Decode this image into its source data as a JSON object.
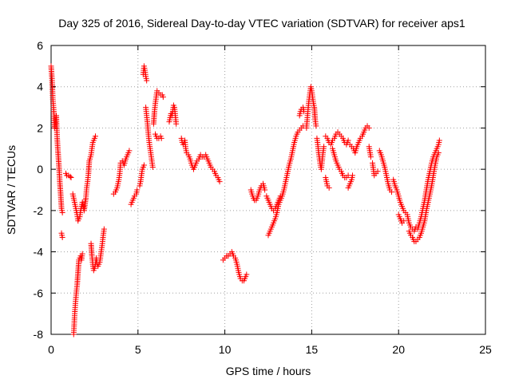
{
  "chart_data": {
    "type": "scatter",
    "title": "Day 325 of 2016, Sidereal Day-to-day VTEC variation (SDTVAR) for receiver aps1",
    "xlabel": "GPS time / hours",
    "ylabel": "SDTVAR / TECUs",
    "xlim": [
      0,
      25
    ],
    "ylim": [
      -8,
      6
    ],
    "xticks": [
      0,
      5,
      10,
      15,
      20,
      25
    ],
    "yticks": [
      -8,
      -6,
      -4,
      -2,
      0,
      2,
      4,
      6
    ],
    "xtick_labels": [
      "0",
      "5",
      "10",
      "15",
      "20",
      "25"
    ],
    "ytick_labels": [
      "-8",
      "-6",
      "-4",
      "-2",
      "0",
      "2",
      "4",
      "6"
    ],
    "grid": true,
    "marker": "+",
    "series_color": "#ff0000",
    "segments": [
      [
        [
          0.0,
          5.0
        ],
        [
          0.05,
          4.4
        ],
        [
          0.1,
          3.4
        ],
        [
          0.15,
          2.9
        ],
        [
          0.2,
          2.0
        ],
        [
          0.3,
          2.6
        ],
        [
          0.35,
          1.5
        ],
        [
          0.4,
          0.8
        ],
        [
          0.45,
          0.2
        ],
        [
          0.5,
          -0.6
        ],
        [
          0.55,
          -1.2
        ],
        [
          0.6,
          -1.9
        ],
        [
          0.65,
          -2.1
        ]
      ],
      [
        [
          0.6,
          -3.1
        ],
        [
          0.65,
          -3.3
        ]
      ],
      [
        [
          0.85,
          -0.2
        ],
        [
          0.9,
          -0.3
        ],
        [
          1.0,
          -0.3
        ],
        [
          1.1,
          -0.35
        ],
        [
          1.15,
          -0.4
        ]
      ],
      [
        [
          1.3,
          -8.0
        ],
        [
          1.33,
          -7.5
        ],
        [
          1.36,
          -7.0
        ],
        [
          1.4,
          -6.5
        ],
        [
          1.45,
          -6.0
        ],
        [
          1.5,
          -5.6
        ],
        [
          1.55,
          -5.0
        ],
        [
          1.6,
          -4.4
        ],
        [
          1.7,
          -4.2
        ],
        [
          1.75,
          -4.4
        ],
        [
          1.8,
          -4.1
        ]
      ],
      [
        [
          1.25,
          -1.2
        ],
        [
          1.3,
          -1.4
        ],
        [
          1.4,
          -1.8
        ],
        [
          1.5,
          -2.2
        ],
        [
          1.55,
          -2.5
        ],
        [
          1.65,
          -2.3
        ],
        [
          1.7,
          -2.0
        ],
        [
          1.8,
          -1.6
        ],
        [
          1.9,
          -2.0
        ],
        [
          2.0,
          -1.4
        ],
        [
          2.05,
          -0.9
        ],
        [
          2.1,
          -0.6
        ],
        [
          2.15,
          -0.2
        ],
        [
          2.2,
          0.4
        ],
        [
          2.3,
          0.7
        ],
        [
          2.35,
          1.0
        ],
        [
          2.4,
          1.3
        ],
        [
          2.5,
          1.5
        ],
        [
          2.55,
          1.6
        ]
      ],
      [
        [
          2.3,
          -3.6
        ],
        [
          2.35,
          -4.2
        ],
        [
          2.4,
          -4.6
        ],
        [
          2.45,
          -4.9
        ],
        [
          2.5,
          -4.8
        ],
        [
          2.55,
          -4.6
        ],
        [
          2.6,
          -4.3
        ],
        [
          2.65,
          -4.6
        ],
        [
          2.7,
          -4.7
        ],
        [
          2.8,
          -4.5
        ],
        [
          2.85,
          -4.2
        ],
        [
          2.9,
          -3.9
        ],
        [
          2.95,
          -3.6
        ],
        [
          3.0,
          -3.2
        ],
        [
          3.05,
          -2.9
        ]
      ],
      [
        [
          3.6,
          -1.2
        ],
        [
          3.7,
          -1.1
        ],
        [
          3.8,
          -0.9
        ],
        [
          3.9,
          -0.5
        ],
        [
          3.95,
          -0.2
        ],
        [
          4.0,
          0.3
        ],
        [
          4.1,
          0.4
        ],
        [
          4.2,
          0.2
        ],
        [
          4.3,
          0.5
        ],
        [
          4.4,
          0.7
        ],
        [
          4.5,
          0.9
        ]
      ],
      [
        [
          4.6,
          -1.7
        ],
        [
          4.7,
          -1.5
        ],
        [
          4.8,
          -1.3
        ],
        [
          4.9,
          -1.2
        ],
        [
          4.95,
          -1.0
        ]
      ],
      [
        [
          5.1,
          -0.8
        ],
        [
          5.15,
          -0.6
        ],
        [
          5.2,
          -0.3
        ],
        [
          5.25,
          0.0
        ],
        [
          5.35,
          0.2
        ]
      ],
      [
        [
          5.3,
          4.6
        ],
        [
          5.35,
          5.0
        ],
        [
          5.4,
          4.8
        ],
        [
          5.45,
          4.5
        ],
        [
          5.5,
          4.3
        ]
      ],
      [
        [
          5.45,
          3.0
        ],
        [
          5.5,
          2.6
        ],
        [
          5.55,
          2.2
        ],
        [
          5.6,
          1.7
        ],
        [
          5.65,
          1.3
        ],
        [
          5.7,
          1.0
        ],
        [
          5.75,
          0.7
        ],
        [
          5.8,
          0.4
        ],
        [
          5.85,
          0.1
        ]
      ],
      [
        [
          5.9,
          2.2
        ],
        [
          5.95,
          2.8
        ],
        [
          6.0,
          3.2
        ],
        [
          6.05,
          3.5
        ],
        [
          6.1,
          3.8
        ],
        [
          6.2,
          3.7
        ],
        [
          6.3,
          3.6
        ],
        [
          6.4,
          3.6
        ],
        [
          6.45,
          3.5
        ]
      ],
      [
        [
          6.0,
          1.7
        ],
        [
          6.1,
          1.5
        ],
        [
          6.2,
          1.5
        ],
        [
          6.3,
          1.6
        ],
        [
          6.35,
          1.5
        ]
      ],
      [
        [
          6.8,
          2.3
        ],
        [
          6.85,
          2.5
        ],
        [
          6.9,
          2.7
        ],
        [
          6.95,
          2.6
        ],
        [
          7.0,
          2.8
        ],
        [
          7.05,
          3.1
        ],
        [
          7.1,
          3.0
        ],
        [
          7.15,
          2.6
        ],
        [
          7.2,
          2.2
        ]
      ],
      [
        [
          7.5,
          1.5
        ],
        [
          7.55,
          1.3
        ],
        [
          7.6,
          1.2
        ],
        [
          7.7,
          1.4
        ],
        [
          7.75,
          1.0
        ],
        [
          7.8,
          0.8
        ]
      ],
      [
        [
          7.9,
          0.7
        ],
        [
          8.0,
          0.5
        ],
        [
          8.1,
          0.2
        ],
        [
          8.2,
          0.0
        ],
        [
          8.3,
          0.2
        ],
        [
          8.4,
          0.4
        ],
        [
          8.5,
          0.5
        ],
        [
          8.6,
          0.7
        ],
        [
          8.7,
          0.6
        ],
        [
          8.8,
          0.6
        ],
        [
          8.9,
          0.7
        ],
        [
          9.0,
          0.5
        ],
        [
          9.1,
          0.3
        ],
        [
          9.2,
          0.1
        ],
        [
          9.3,
          0.0
        ],
        [
          9.4,
          -0.1
        ],
        [
          9.5,
          -0.3
        ],
        [
          9.6,
          -0.4
        ],
        [
          9.7,
          -0.6
        ]
      ],
      [
        [
          9.9,
          -4.4
        ],
        [
          10.0,
          -4.3
        ],
        [
          10.1,
          -4.2
        ],
        [
          10.2,
          -4.2
        ],
        [
          10.3,
          -4.1
        ],
        [
          10.4,
          -4.0
        ],
        [
          10.5,
          -4.2
        ],
        [
          10.6,
          -4.3
        ],
        [
          10.7,
          -4.6
        ],
        [
          10.8,
          -5.0
        ],
        [
          10.9,
          -5.3
        ],
        [
          11.0,
          -5.4
        ],
        [
          11.1,
          -5.4
        ],
        [
          11.2,
          -5.2
        ],
        [
          11.25,
          -5.1
        ]
      ],
      [
        [
          11.5,
          -1.0
        ],
        [
          11.6,
          -1.3
        ],
        [
          11.7,
          -1.5
        ],
        [
          11.8,
          -1.5
        ],
        [
          11.9,
          -1.3
        ],
        [
          12.0,
          -1.0
        ],
        [
          12.1,
          -0.8
        ],
        [
          12.2,
          -0.7
        ],
        [
          12.3,
          -1.0
        ]
      ],
      [
        [
          12.4,
          -1.3
        ],
        [
          12.5,
          -1.5
        ],
        [
          12.6,
          -1.7
        ],
        [
          12.7,
          -1.9
        ],
        [
          12.8,
          -2.0
        ],
        [
          12.9,
          -1.9
        ],
        [
          13.0,
          -1.7
        ],
        [
          13.1,
          -1.5
        ],
        [
          13.2,
          -1.3
        ]
      ],
      [
        [
          12.5,
          -3.2
        ],
        [
          12.6,
          -3.0
        ],
        [
          12.7,
          -2.8
        ],
        [
          12.8,
          -2.6
        ],
        [
          12.9,
          -2.4
        ],
        [
          13.0,
          -2.1
        ],
        [
          13.1,
          -1.7
        ],
        [
          13.2,
          -1.5
        ],
        [
          13.3,
          -1.3
        ],
        [
          13.4,
          -1.0
        ],
        [
          13.5,
          -0.6
        ],
        [
          13.6,
          -0.2
        ],
        [
          13.7,
          0.2
        ],
        [
          13.8,
          0.5
        ],
        [
          13.9,
          0.9
        ],
        [
          14.0,
          1.3
        ],
        [
          14.1,
          1.6
        ],
        [
          14.2,
          1.8
        ],
        [
          14.3,
          1.9
        ],
        [
          14.4,
          2.0
        ],
        [
          14.5,
          2.1
        ]
      ],
      [
        [
          14.3,
          2.6
        ],
        [
          14.35,
          2.8
        ],
        [
          14.4,
          2.9
        ],
        [
          14.5,
          3.0
        ],
        [
          14.55,
          2.8
        ]
      ],
      [
        [
          14.7,
          2.0
        ],
        [
          14.75,
          2.5
        ],
        [
          14.8,
          3.0
        ],
        [
          14.85,
          3.4
        ],
        [
          14.9,
          3.7
        ],
        [
          14.95,
          4.0
        ],
        [
          15.0,
          3.8
        ],
        [
          15.05,
          3.5
        ],
        [
          15.1,
          3.2
        ],
        [
          15.15,
          3.0
        ],
        [
          15.2,
          2.4
        ],
        [
          15.25,
          2.1
        ]
      ],
      [
        [
          15.3,
          1.5
        ],
        [
          15.35,
          1.2
        ],
        [
          15.4,
          0.8
        ],
        [
          15.45,
          0.5
        ],
        [
          15.5,
          0.2
        ],
        [
          15.55,
          0.0
        ],
        [
          15.6,
          0.4
        ],
        [
          15.65,
          0.8
        ],
        [
          15.7,
          1.1
        ]
      ],
      [
        [
          15.8,
          1.6
        ],
        [
          15.9,
          1.5
        ],
        [
          16.0,
          1.3
        ],
        [
          16.1,
          1.2
        ],
        [
          16.2,
          1.4
        ],
        [
          16.3,
          1.5
        ],
        [
          16.4,
          1.7
        ],
        [
          16.5,
          1.8
        ],
        [
          16.6,
          1.7
        ],
        [
          16.7,
          1.6
        ],
        [
          16.8,
          1.5
        ],
        [
          16.9,
          1.3
        ],
        [
          17.0,
          1.2
        ],
        [
          17.1,
          1.4
        ]
      ],
      [
        [
          15.8,
          -0.4
        ],
        [
          15.85,
          -0.6
        ],
        [
          15.9,
          -0.8
        ],
        [
          16.0,
          -0.9
        ]
      ],
      [
        [
          16.2,
          1.0
        ],
        [
          16.3,
          0.7
        ],
        [
          16.4,
          0.4
        ],
        [
          16.5,
          0.2
        ],
        [
          16.6,
          0.0
        ],
        [
          16.7,
          -0.1
        ],
        [
          16.8,
          -0.3
        ],
        [
          16.9,
          -0.4
        ],
        [
          17.0,
          -0.4
        ],
        [
          17.1,
          -0.3
        ]
      ],
      [
        [
          17.2,
          1.2
        ],
        [
          17.3,
          1.1
        ],
        [
          17.4,
          1.0
        ],
        [
          17.5,
          0.8
        ],
        [
          17.6,
          1.1
        ],
        [
          17.7,
          1.3
        ],
        [
          17.8,
          1.5
        ],
        [
          17.9,
          1.6
        ],
        [
          18.0,
          1.8
        ],
        [
          18.1,
          2.0
        ],
        [
          18.2,
          2.1
        ],
        [
          18.3,
          2.0
        ]
      ],
      [
        [
          17.1,
          -0.9
        ],
        [
          17.2,
          -0.7
        ],
        [
          17.3,
          -0.5
        ],
        [
          17.35,
          -0.3
        ]
      ],
      [
        [
          18.3,
          1.1
        ],
        [
          18.4,
          0.6
        ]
      ],
      [
        [
          18.5,
          0.3
        ],
        [
          18.55,
          0.0
        ],
        [
          18.6,
          -0.3
        ],
        [
          18.7,
          -0.2
        ],
        [
          18.8,
          -0.1
        ]
      ],
      [
        [
          18.9,
          0.9
        ],
        [
          19.0,
          0.7
        ],
        [
          19.1,
          0.4
        ],
        [
          19.2,
          0.1
        ],
        [
          19.3,
          -0.3
        ],
        [
          19.4,
          -0.7
        ],
        [
          19.5,
          -1.0
        ],
        [
          19.6,
          -1.1
        ]
      ],
      [
        [
          19.7,
          -0.5
        ],
        [
          19.8,
          -0.8
        ],
        [
          19.9,
          -1.0
        ],
        [
          20.0,
          -1.3
        ],
        [
          20.1,
          -1.6
        ],
        [
          20.2,
          -1.8
        ],
        [
          20.3,
          -2.0
        ],
        [
          20.4,
          -2.1
        ],
        [
          20.5,
          -2.2
        ],
        [
          20.6,
          -2.6
        ],
        [
          20.7,
          -2.8
        ],
        [
          20.8,
          -2.9
        ],
        [
          20.9,
          -3.0
        ],
        [
          21.0,
          -2.8
        ]
      ],
      [
        [
          20.0,
          -2.2
        ],
        [
          20.1,
          -2.4
        ],
        [
          20.2,
          -2.6
        ],
        [
          20.3,
          -2.5
        ]
      ],
      [
        [
          20.6,
          -3.0
        ],
        [
          20.7,
          -3.2
        ],
        [
          20.8,
          -3.3
        ],
        [
          20.9,
          -3.5
        ],
        [
          21.0,
          -3.5
        ],
        [
          21.1,
          -3.4
        ],
        [
          21.2,
          -3.3
        ],
        [
          21.3,
          -3.1
        ],
        [
          21.4,
          -2.8
        ],
        [
          21.5,
          -2.5
        ],
        [
          21.6,
          -2.0
        ],
        [
          21.7,
          -1.6
        ],
        [
          21.8,
          -1.2
        ],
        [
          21.9,
          -0.8
        ],
        [
          22.0,
          -0.3
        ],
        [
          22.1,
          0.2
        ],
        [
          22.2,
          0.6
        ],
        [
          22.3,
          0.8
        ]
      ],
      [
        [
          21.1,
          -2.9
        ],
        [
          21.2,
          -2.6
        ],
        [
          21.3,
          -2.3
        ],
        [
          21.4,
          -1.9
        ],
        [
          21.5,
          -1.5
        ],
        [
          21.6,
          -1.0
        ],
        [
          21.7,
          -0.5
        ],
        [
          21.8,
          -0.1
        ],
        [
          21.9,
          0.3
        ],
        [
          22.0,
          0.6
        ],
        [
          22.1,
          0.8
        ],
        [
          22.2,
          1.0
        ],
        [
          22.3,
          1.2
        ],
        [
          22.35,
          1.4
        ]
      ]
    ]
  }
}
